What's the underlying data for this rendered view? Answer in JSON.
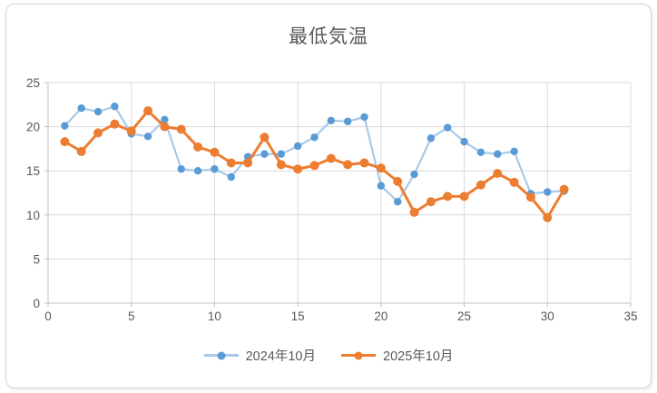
{
  "chart_data": {
    "type": "line",
    "title": "最低気温",
    "x": [
      1,
      2,
      3,
      4,
      5,
      6,
      7,
      8,
      9,
      10,
      11,
      12,
      13,
      14,
      15,
      16,
      17,
      18,
      19,
      20,
      21,
      22,
      23,
      24,
      25,
      26,
      27,
      28,
      29,
      30,
      31
    ],
    "series": [
      {
        "name": "2024年10月",
        "line_color": "#a9c9e8",
        "marker_color": "#5b9bd5",
        "values": [
          20.1,
          22.1,
          21.7,
          22.3,
          19.2,
          18.9,
          20.8,
          15.2,
          15.0,
          15.2,
          14.3,
          16.6,
          16.9,
          16.9,
          17.8,
          18.8,
          20.7,
          20.6,
          21.1,
          13.3,
          11.5,
          14.6,
          18.7,
          19.9,
          18.3,
          17.1,
          16.9,
          17.2,
          12.4,
          12.6,
          12.7
        ]
      },
      {
        "name": "2025年10月",
        "line_color": "#ed7d31",
        "marker_color": "#ed7d31",
        "values": [
          18.3,
          17.2,
          19.3,
          20.3,
          19.5,
          21.8,
          20.0,
          19.7,
          17.7,
          17.1,
          15.9,
          15.9,
          18.8,
          15.7,
          15.2,
          15.6,
          16.4,
          15.7,
          15.9,
          15.3,
          13.8,
          10.3,
          11.5,
          12.1,
          12.1,
          13.4,
          14.7,
          13.7,
          12.0,
          9.7,
          12.9
        ]
      }
    ],
    "xlim": [
      0,
      35
    ],
    "ylim": [
      0,
      25
    ],
    "x_ticks": [
      0,
      5,
      10,
      15,
      20,
      25,
      30,
      35
    ],
    "y_ticks": [
      0,
      5,
      10,
      15,
      20,
      25
    ],
    "grid": true,
    "legend_position": "bottom",
    "grid_color": "#d9d9d9",
    "axis_color": "#bfbfbf",
    "label_color": "#595959"
  }
}
